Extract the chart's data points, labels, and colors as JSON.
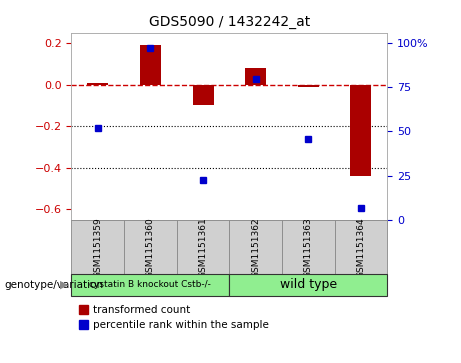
{
  "title": "GDS5090 / 1432242_at",
  "samples": [
    "GSM1151359",
    "GSM1151360",
    "GSM1151361",
    "GSM1151362",
    "GSM1151363",
    "GSM1151364"
  ],
  "red_bars": [
    0.01,
    0.19,
    -0.1,
    0.08,
    -0.01,
    -0.44
  ],
  "blue_dots": [
    -0.21,
    0.175,
    -0.46,
    0.025,
    -0.26,
    -0.595
  ],
  "ylim_left": [
    -0.65,
    0.25
  ],
  "ylim_right": [
    0,
    106
  ],
  "yticks_left": [
    0.2,
    0.0,
    -0.2,
    -0.4,
    -0.6
  ],
  "yticks_right": [
    100,
    75,
    50,
    25,
    0
  ],
  "group1_label": "cystatin B knockout Cstb-/-",
  "group2_label": "wild type",
  "group1_color": "#90EE90",
  "group2_color": "#90EE90",
  "bar_color": "#aa0000",
  "dot_color": "#0000cc",
  "zero_line_color": "#cc0000",
  "grid_color": "#000000",
  "label_color_left": "#cc0000",
  "label_color_right": "#0000cc",
  "bg_color": "#ffffff",
  "sample_box_color": "#d0d0d0",
  "genotype_label": "genotype/variation",
  "legend_red": "transformed count",
  "legend_blue": "percentile rank within the sample",
  "bar_width": 0.4,
  "marker_size": 5
}
